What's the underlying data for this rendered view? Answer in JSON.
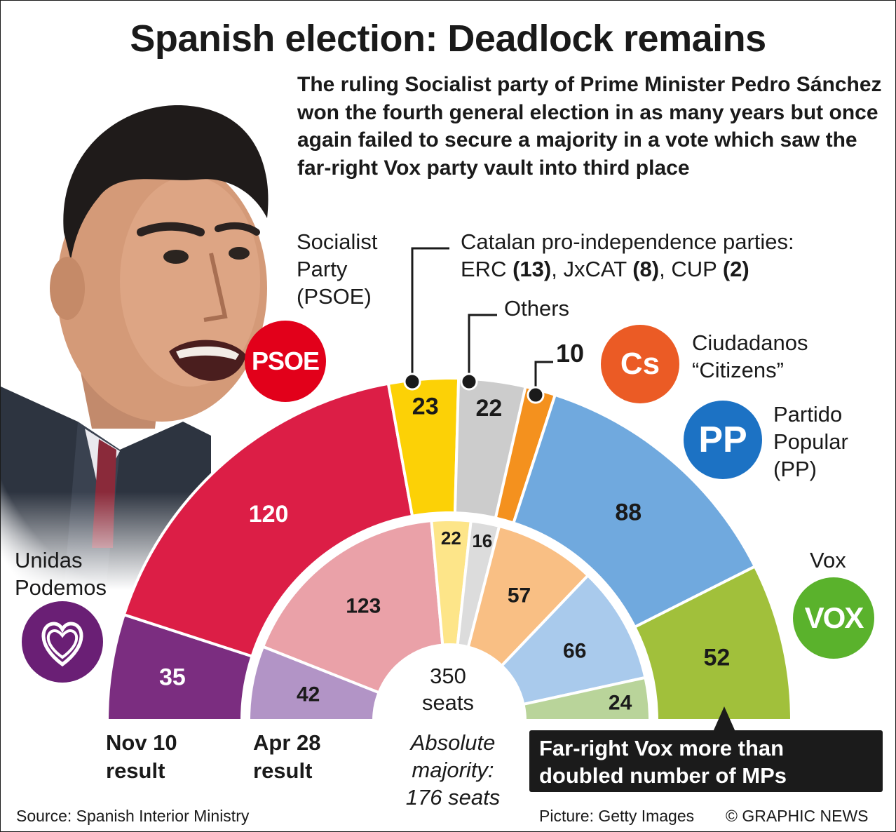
{
  "title": "Spanish election: Deadlock remains",
  "summary": "The ruling Socialist party of Prime Minister Pedro Sánchez won the fourth general election in as many years but once again failed to secure a majority in a vote which saw the far-right Vox party vault into third place",
  "labels": {
    "psoe": [
      "Socialist",
      "Party",
      "(PSOE)"
    ],
    "catalan_line1": "Catalan pro-independence parties:",
    "catalan_line2": {
      "erc": "ERC ",
      "erc_n": "(13)",
      "jx": ", JxCAT ",
      "jx_n": "(8)",
      "cup": ", CUP ",
      "cup_n": "(2)"
    },
    "others": "Others",
    "cs_seats_label": "10",
    "cs": [
      "Ciudadanos",
      "“Citizens”"
    ],
    "pp": [
      "Partido",
      "Popular",
      "(PP)"
    ],
    "vox": "Vox",
    "podemos": [
      "Unidas",
      "Podemos"
    ]
  },
  "logos": {
    "psoe": "PSOE",
    "cs": "Cs",
    "pp": "PP",
    "vox": "VOX"
  },
  "center": {
    "total": "350",
    "unit": "seats"
  },
  "results": {
    "nov": [
      "Nov 10",
      "result"
    ],
    "apr": [
      "Apr 28",
      "result"
    ]
  },
  "majority": [
    "Absolute",
    "majority:",
    "176 seats"
  ],
  "callout": [
    "Far-right Vox more than",
    "doubled number of MPs"
  ],
  "footer": {
    "source": "Source: Spanish Interior Ministry",
    "picture": "Picture: Getty Images",
    "credit": "© GRAPHIC NEWS"
  },
  "chart_data": {
    "type": "parliament-semicircle",
    "total_seats": 350,
    "majority": 176,
    "parties": [
      "Unidas Podemos",
      "PSOE",
      "Catalan pro-independence",
      "Others",
      "Ciudadanos",
      "PP",
      "Vox"
    ],
    "series": [
      {
        "name": "Nov 10 result",
        "values": [
          35,
          120,
          23,
          22,
          10,
          88,
          52
        ]
      },
      {
        "name": "Apr 28 result",
        "values": [
          42,
          123,
          22,
          16,
          57,
          66,
          24
        ]
      }
    ],
    "colors": {
      "outer": [
        "#7b2d80",
        "#dc1e46",
        "#fcd106",
        "#cccccc",
        "#f4911e",
        "#70a9de",
        "#a1c03b"
      ],
      "inner": [
        "#b294c6",
        "#eaa1a8",
        "#fde589",
        "#dcdcdc",
        "#f9bf84",
        "#a9caec",
        "#b9d49a"
      ],
      "outer_text": [
        "#ffffff",
        "#ffffff",
        "#1a1a1a",
        "#1a1a1a",
        "#1a1a1a",
        "#1a1a1a",
        "#1a1a1a"
      ]
    }
  }
}
